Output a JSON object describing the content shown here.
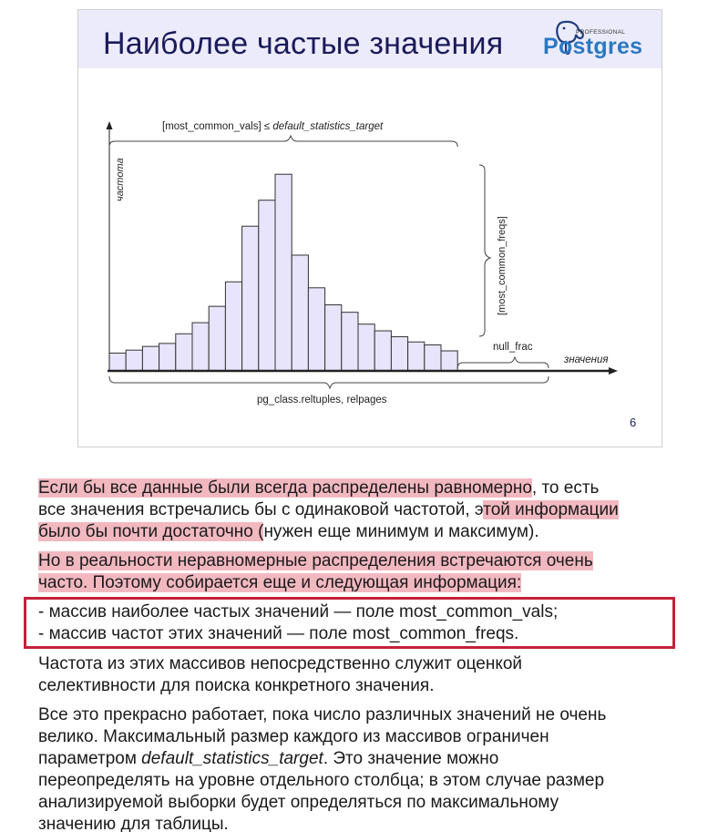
{
  "slide": {
    "title": "Наиболее частые значения",
    "logo": {
      "sub": "PROFESSIONAL",
      "main": "Postgres"
    },
    "page_number": "6"
  },
  "chart_data": {
    "type": "bar",
    "values": [
      24,
      28,
      33,
      37,
      50,
      65,
      87,
      120,
      195,
      230,
      265,
      156,
      112,
      89,
      79,
      63,
      54,
      46,
      39,
      35,
      27
    ],
    "ylim": [
      0,
      280
    ],
    "ylabel": "частота",
    "xlabel": "значения",
    "annotations": {
      "top_brace_prefix": "[most_common_vals] ≤ ",
      "top_brace_italic": "default_statistics_target",
      "right_brace": "[most_common_freqs]",
      "null_brace": "null_frac",
      "bottom_brace": "pg_class.reltuples, relpages"
    },
    "colors": {
      "bar_fill": "#e8e4fb",
      "bar_stroke": "#333333",
      "axis": "#222222"
    }
  },
  "notes": {
    "p1": {
      "seg1": "Если бы все данные были всегда распределены равномерно",
      "seg2": ", то есть",
      "seg3": "все значения встречались бы с одинаковой частотой, э",
      "seg4": "той информации",
      "seg5": "было бы почти достаточно (",
      "seg6": "нужен еще минимум и максимум)."
    },
    "p2": {
      "line1": "Но в реальности неравномерные распределения встречаются очень",
      "line2": "часто. Поэтому собирается еще и следующая информация:"
    },
    "boxed": {
      "line1": "- массив наиболее частых значений — поле most_common_vals;",
      "line2": "- массив частот этих значений — поле most_common_freqs."
    },
    "p3": {
      "line1": "Частота из этих массивов непосредственно служит оценкой",
      "line2": "селективности для поиска конкретного значения."
    },
    "p4": {
      "line1": "Все это прекрасно работает, пока число различных значений не очень",
      "line2": "велико. Максимальный размер каждого из массивов ограничен",
      "line3_prefix": "параметром ",
      "line3_italic": "default_statistics_target",
      "line3_suffix": ". Это значение можно",
      "line4": "переопределять на уровне отдельного столбца; в этом случае размер",
      "line5": "анализируемой выборки  будет определяться по максимальному",
      "line6": "значению для таблицы."
    }
  }
}
